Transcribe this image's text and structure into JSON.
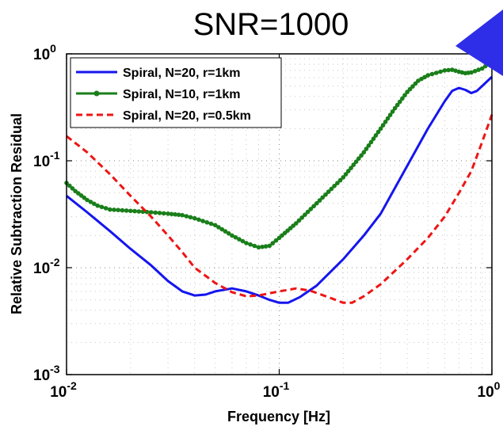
{
  "chart_data": {
    "type": "line",
    "title": "SNR=1000",
    "xlabel": "Frequency [Hz]",
    "ylabel": "Relative Subtraction Residual",
    "x_scale": "log",
    "y_scale": "log",
    "xlim": [
      0.01,
      1
    ],
    "ylim": [
      0.001,
      1
    ],
    "grid": true,
    "legend_position": "top-left",
    "x_ticks": [
      {
        "value": 0.01,
        "base": "10",
        "exp": "-2"
      },
      {
        "value": 0.1,
        "base": "10",
        "exp": "-1"
      },
      {
        "value": 1,
        "base": "10",
        "exp": "0"
      }
    ],
    "y_ticks": [
      {
        "value": 0.001,
        "base": "10",
        "exp": "-3"
      },
      {
        "value": 0.01,
        "base": "10",
        "exp": "-2"
      },
      {
        "value": 0.1,
        "base": "10",
        "exp": "-1"
      },
      {
        "value": 1,
        "base": "10",
        "exp": "0"
      }
    ],
    "series": [
      {
        "name": "Spiral, N=20, r=1km",
        "color": "#1515ee",
        "style": "solid",
        "marker": "none",
        "points": [
          [
            0.01,
            0.047
          ],
          [
            0.0125,
            0.033
          ],
          [
            0.016,
            0.022
          ],
          [
            0.02,
            0.015
          ],
          [
            0.025,
            0.0105
          ],
          [
            0.03,
            0.0075
          ],
          [
            0.035,
            0.006
          ],
          [
            0.04,
            0.0055
          ],
          [
            0.045,
            0.0056
          ],
          [
            0.05,
            0.006
          ],
          [
            0.06,
            0.0064
          ],
          [
            0.07,
            0.006
          ],
          [
            0.08,
            0.0055
          ],
          [
            0.09,
            0.005
          ],
          [
            0.1,
            0.0047
          ],
          [
            0.11,
            0.0047
          ],
          [
            0.125,
            0.0053
          ],
          [
            0.15,
            0.0068
          ],
          [
            0.2,
            0.012
          ],
          [
            0.25,
            0.02
          ],
          [
            0.3,
            0.032
          ],
          [
            0.4,
            0.09
          ],
          [
            0.5,
            0.2
          ],
          [
            0.6,
            0.36
          ],
          [
            0.65,
            0.45
          ],
          [
            0.7,
            0.48
          ],
          [
            0.75,
            0.46
          ],
          [
            0.8,
            0.43
          ],
          [
            0.85,
            0.45
          ],
          [
            0.9,
            0.5
          ],
          [
            1.0,
            0.61
          ]
        ]
      },
      {
        "name": "Spiral, N=10, r=1km",
        "color": "#1a7f1a",
        "style": "solid",
        "marker": "dot",
        "points": [
          [
            0.01,
            0.062
          ],
          [
            0.011,
            0.052
          ],
          [
            0.0125,
            0.043
          ],
          [
            0.014,
            0.038
          ],
          [
            0.016,
            0.035
          ],
          [
            0.02,
            0.034
          ],
          [
            0.025,
            0.033
          ],
          [
            0.03,
            0.032
          ],
          [
            0.035,
            0.031
          ],
          [
            0.04,
            0.029
          ],
          [
            0.05,
            0.025
          ],
          [
            0.06,
            0.02
          ],
          [
            0.07,
            0.017
          ],
          [
            0.08,
            0.0155
          ],
          [
            0.09,
            0.016
          ],
          [
            0.1,
            0.019
          ],
          [
            0.12,
            0.026
          ],
          [
            0.15,
            0.04
          ],
          [
            0.2,
            0.07
          ],
          [
            0.25,
            0.12
          ],
          [
            0.3,
            0.2
          ],
          [
            0.35,
            0.31
          ],
          [
            0.4,
            0.44
          ],
          [
            0.45,
            0.56
          ],
          [
            0.5,
            0.63
          ],
          [
            0.6,
            0.7
          ],
          [
            0.65,
            0.71
          ],
          [
            0.7,
            0.68
          ],
          [
            0.75,
            0.66
          ],
          [
            0.8,
            0.67
          ],
          [
            0.9,
            0.73
          ],
          [
            1.0,
            0.85
          ]
        ]
      },
      {
        "name": "Spiral, N=20, r=0.5km",
        "color": "#ee1515",
        "style": "dashed",
        "marker": "none",
        "points": [
          [
            0.01,
            0.17
          ],
          [
            0.0125,
            0.12
          ],
          [
            0.016,
            0.075
          ],
          [
            0.02,
            0.047
          ],
          [
            0.025,
            0.03
          ],
          [
            0.03,
            0.02
          ],
          [
            0.035,
            0.014
          ],
          [
            0.04,
            0.01
          ],
          [
            0.05,
            0.0072
          ],
          [
            0.06,
            0.0059
          ],
          [
            0.07,
            0.0054
          ],
          [
            0.08,
            0.0055
          ],
          [
            0.1,
            0.006
          ],
          [
            0.12,
            0.0064
          ],
          [
            0.14,
            0.0061
          ],
          [
            0.17,
            0.0053
          ],
          [
            0.2,
            0.0047
          ],
          [
            0.22,
            0.0047
          ],
          [
            0.25,
            0.0054
          ],
          [
            0.3,
            0.007
          ],
          [
            0.4,
            0.012
          ],
          [
            0.5,
            0.019
          ],
          [
            0.6,
            0.03
          ],
          [
            0.7,
            0.05
          ],
          [
            0.8,
            0.08
          ],
          [
            0.9,
            0.15
          ],
          [
            1.0,
            0.27
          ]
        ]
      }
    ]
  }
}
